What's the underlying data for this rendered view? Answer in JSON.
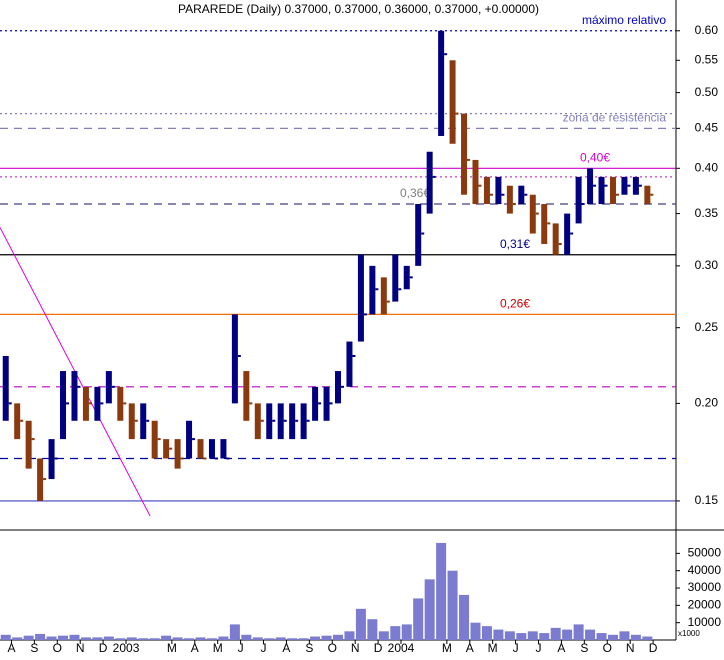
{
  "chart_data": {
    "type": "ohlc",
    "title": "PARAREDE (Daily) 0.37000, 0.37000, 0.36000, 0.37000, +0.00000)",
    "log_y": true,
    "xlim": [
      0,
      29.5
    ],
    "xticks": [
      {
        "value": 0.5,
        "label": "A"
      },
      {
        "value": 1.5,
        "label": "S"
      },
      {
        "value": 2.5,
        "label": "O"
      },
      {
        "value": 3.5,
        "label": "N"
      },
      {
        "value": 4.5,
        "label": "D"
      },
      {
        "value": 5.5,
        "label": "2003"
      },
      {
        "value": 7.5,
        "label": "M"
      },
      {
        "value": 8.5,
        "label": "A"
      },
      {
        "value": 9.5,
        "label": "M"
      },
      {
        "value": 10.5,
        "label": "J"
      },
      {
        "value": 11.5,
        "label": "J"
      },
      {
        "value": 12.5,
        "label": "A"
      },
      {
        "value": 13.5,
        "label": "S"
      },
      {
        "value": 14.5,
        "label": "O"
      },
      {
        "value": 15.5,
        "label": "N"
      },
      {
        "value": 16.5,
        "label": "D"
      },
      {
        "value": 17.5,
        "label": "2004"
      },
      {
        "value": 19.5,
        "label": "M"
      },
      {
        "value": 20.5,
        "label": "A"
      },
      {
        "value": 21.5,
        "label": "M"
      },
      {
        "value": 22.5,
        "label": "J"
      },
      {
        "value": 23.5,
        "label": "J"
      },
      {
        "value": 24.5,
        "label": "A"
      },
      {
        "value": 25.5,
        "label": "S"
      },
      {
        "value": 26.5,
        "label": "O"
      },
      {
        "value": 27.5,
        "label": "N"
      },
      {
        "value": 28.5,
        "label": "D"
      }
    ],
    "ylim": [
      0.1385,
      0.657
    ],
    "yticks": [
      {
        "value": 0.15,
        "label": "0.15"
      },
      {
        "value": 0.2,
        "label": "0.20"
      },
      {
        "value": 0.25,
        "label": "0.25"
      },
      {
        "value": 0.3,
        "label": "0.30"
      },
      {
        "value": 0.35,
        "label": "0.35"
      },
      {
        "value": 0.4,
        "label": "0.40"
      },
      {
        "value": 0.45,
        "label": "0.45"
      },
      {
        "value": 0.5,
        "label": "0.50"
      },
      {
        "value": 0.55,
        "label": "0.55"
      },
      {
        "value": 0.6,
        "label": "0.60"
      }
    ],
    "x": [
      0.25,
      0.75,
      1.25,
      1.75,
      2.25,
      2.75,
      3.25,
      3.75,
      4.25,
      4.75,
      5.25,
      5.75,
      6.25,
      6.75,
      7.25,
      7.75,
      8.25,
      8.75,
      9.25,
      9.75,
      10.25,
      10.75,
      11.25,
      11.75,
      12.25,
      12.75,
      13.25,
      13.75,
      14.25,
      14.75,
      15.25,
      15.75,
      16.25,
      16.75,
      17.25,
      17.75,
      18.25,
      18.75,
      19.25,
      19.75,
      20.25,
      20.75,
      21.25,
      21.75,
      22.25,
      22.75,
      23.25,
      23.75,
      24.25,
      24.75,
      25.25,
      25.75,
      26.25,
      26.75,
      27.25,
      27.75,
      28.25
    ],
    "high": [
      0.23,
      0.2,
      0.19,
      0.17,
      0.18,
      0.22,
      0.22,
      0.21,
      0.21,
      0.22,
      0.21,
      0.2,
      0.2,
      0.19,
      0.18,
      0.18,
      0.19,
      0.18,
      0.18,
      0.18,
      0.26,
      0.22,
      0.2,
      0.2,
      0.2,
      0.2,
      0.2,
      0.21,
      0.21,
      0.22,
      0.24,
      0.31,
      0.3,
      0.29,
      0.31,
      0.3,
      0.36,
      0.42,
      0.6,
      0.55,
      0.47,
      0.41,
      0.39,
      0.39,
      0.38,
      0.38,
      0.37,
      0.36,
      0.34,
      0.35,
      0.39,
      0.4,
      0.39,
      0.39,
      0.39,
      0.39,
      0.38
    ],
    "low": [
      0.19,
      0.18,
      0.165,
      0.15,
      0.16,
      0.18,
      0.19,
      0.19,
      0.19,
      0.2,
      0.19,
      0.18,
      0.18,
      0.17,
      0.17,
      0.165,
      0.17,
      0.17,
      0.17,
      0.17,
      0.2,
      0.19,
      0.18,
      0.18,
      0.18,
      0.18,
      0.18,
      0.19,
      0.19,
      0.2,
      0.21,
      0.24,
      0.26,
      0.26,
      0.27,
      0.28,
      0.3,
      0.35,
      0.44,
      0.43,
      0.37,
      0.36,
      0.36,
      0.36,
      0.35,
      0.36,
      0.33,
      0.32,
      0.31,
      0.31,
      0.34,
      0.36,
      0.36,
      0.36,
      0.37,
      0.37,
      0.36
    ],
    "close": [
      0.2,
      0.19,
      0.18,
      0.16,
      0.17,
      0.2,
      0.21,
      0.2,
      0.2,
      0.21,
      0.2,
      0.19,
      0.19,
      0.18,
      0.175,
      0.17,
      0.18,
      0.17,
      0.17,
      0.17,
      0.23,
      0.2,
      0.19,
      0.19,
      0.19,
      0.19,
      0.19,
      0.2,
      0.2,
      0.21,
      0.23,
      0.26,
      0.28,
      0.27,
      0.28,
      0.29,
      0.33,
      0.39,
      0.56,
      0.47,
      0.41,
      0.38,
      0.37,
      0.37,
      0.36,
      0.37,
      0.35,
      0.34,
      0.32,
      0.33,
      0.36,
      0.38,
      0.38,
      0.37,
      0.38,
      0.38,
      0.37
    ],
    "up_color": "#000080",
    "down_color": "#8b3a0f",
    "volume": {
      "ylim": [
        0,
        60600
      ],
      "yticks": [
        10000,
        20000,
        30000,
        40000,
        50000
      ],
      "unit_label": "x1000",
      "color": "#7b7bd0",
      "values": [
        3000,
        1500,
        2500,
        3500,
        2000,
        2500,
        3000,
        1500,
        1500,
        2000,
        1000,
        1500,
        1000,
        1000,
        2500,
        1500,
        1000,
        1500,
        1000,
        2000,
        9000,
        3000,
        1500,
        1000,
        1500,
        1000,
        1000,
        2000,
        2500,
        3000,
        5000,
        18000,
        12000,
        5000,
        8000,
        9000,
        24000,
        35000,
        56000,
        40000,
        26000,
        10000,
        8000,
        6000,
        5000,
        4000,
        5000,
        4000,
        7000,
        6000,
        9000,
        6000,
        4000,
        3000,
        5000,
        3000,
        2000
      ]
    },
    "hlines": [
      {
        "value": 0.6,
        "color": "#0000c0",
        "dash": "2,3",
        "label": "máximo relativo"
      },
      {
        "value": 0.47,
        "color": "#8080c0",
        "dash": "2,3"
      },
      {
        "value": 0.45,
        "color": "#8080c0",
        "dash": "8,6",
        "label": "zona de resistência"
      },
      {
        "value": 0.4,
        "color": "#d000d0",
        "dash": "",
        "label": "0,40€"
      },
      {
        "value": 0.39,
        "color": "#c040c0",
        "dash": "2,3"
      },
      {
        "value": 0.36,
        "color": "#404080",
        "dash": "8,6",
        "label": "0,36€"
      },
      {
        "value": 0.31,
        "color": "#000000",
        "dash": "",
        "label": "0,31€"
      },
      {
        "value": 0.26,
        "color": "#f07000",
        "dash": "",
        "label": "0,26€"
      },
      {
        "value": 0.21,
        "color": "#c000c0",
        "dash": "8,6"
      },
      {
        "value": 0.17,
        "color": "#0000a0",
        "dash": "8,6"
      },
      {
        "value": 0.15,
        "color": "#4040c0",
        "dash": ""
      }
    ],
    "trendline": {
      "x": [
        0,
        6.55
      ],
      "y": [
        0.336,
        0.1435
      ],
      "color": "#e000e0"
    }
  }
}
